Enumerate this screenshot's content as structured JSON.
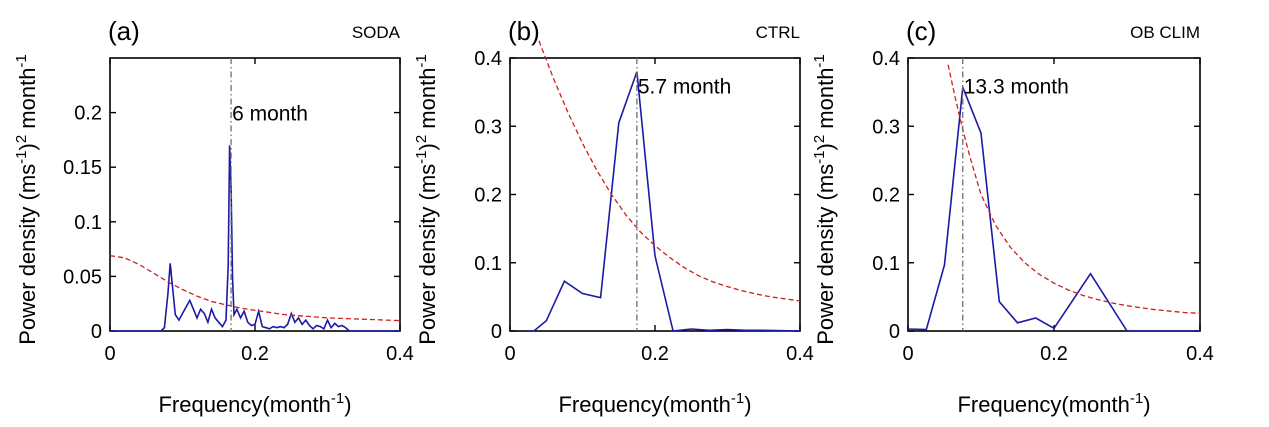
{
  "chart_data": [
    {
      "type": "line",
      "panel_label": "(a)",
      "dataset": "SODA",
      "xlabel": "Frequency(month",
      "xlabel_sup": "-1",
      "xlabel_end": ")",
      "ylabel_parts": [
        "Power density (ms",
        "-1",
        ")",
        "2",
        " month",
        "-1"
      ],
      "xlim": [
        0,
        0.4
      ],
      "ylim": [
        0,
        0.25
      ],
      "xticks": [
        0,
        0.2,
        0.4
      ],
      "xtick_labels": [
        "0",
        "0.2",
        "0.4"
      ],
      "yticks": [
        0,
        0.05,
        0.1,
        0.15,
        0.2
      ],
      "ytick_labels": [
        "0",
        "0.05",
        "0.1",
        "0.15",
        "0.2"
      ],
      "peak_frequency": 0.167,
      "peak_label": "6 month",
      "series": [
        {
          "role": "spectrum",
          "color": "#1a1aa6",
          "x": [
            0,
            0.05,
            0.07,
            0.075,
            0.08,
            0.083,
            0.087,
            0.09,
            0.095,
            0.1,
            0.105,
            0.11,
            0.115,
            0.12,
            0.125,
            0.13,
            0.135,
            0.14,
            0.145,
            0.15,
            0.155,
            0.16,
            0.163,
            0.165,
            0.167,
            0.169,
            0.171,
            0.175,
            0.18,
            0.185,
            0.19,
            0.195,
            0.2,
            0.205,
            0.21,
            0.215,
            0.22,
            0.225,
            0.23,
            0.235,
            0.24,
            0.245,
            0.25,
            0.255,
            0.26,
            0.265,
            0.27,
            0.275,
            0.28,
            0.285,
            0.29,
            0.295,
            0.3,
            0.305,
            0.31,
            0.315,
            0.32,
            0.325,
            0.33,
            0.4
          ],
          "y": [
            0,
            0,
            0,
            0.003,
            0.035,
            0.062,
            0.035,
            0.015,
            0.01,
            0.016,
            0.022,
            0.028,
            0.02,
            0.012,
            0.02,
            0.016,
            0.008,
            0.02,
            0.012,
            0.008,
            0.004,
            0.01,
            0.06,
            0.17,
            0.13,
            0.05,
            0.015,
            0.02,
            0.012,
            0.018,
            0.008,
            0.005,
            0.006,
            0.018,
            0.004,
            0.003,
            0.002,
            0.004,
            0.003,
            0.004,
            0.003,
            0.006,
            0.016,
            0.008,
            0.012,
            0.006,
            0.01,
            0.005,
            0.002,
            0.005,
            0.004,
            0.002,
            0.01,
            0.003,
            0.007,
            0.004,
            0.005,
            0.003,
            0,
            0
          ]
        },
        {
          "role": "reference",
          "color": "#cc1f1f",
          "x": [
            0,
            0.02,
            0.04,
            0.06,
            0.08,
            0.1,
            0.12,
            0.14,
            0.16,
            0.18,
            0.2,
            0.22,
            0.24,
            0.26,
            0.28,
            0.3,
            0.32,
            0.34,
            0.36,
            0.38,
            0.4
          ],
          "y": [
            0.069,
            0.067,
            0.061,
            0.053,
            0.045,
            0.038,
            0.032,
            0.027,
            0.024,
            0.021,
            0.019,
            0.017,
            0.015,
            0.014,
            0.013,
            0.012,
            0.0115,
            0.011,
            0.0105,
            0.01,
            0.0095
          ]
        }
      ]
    },
    {
      "type": "line",
      "panel_label": "(b)",
      "dataset": "CTRL",
      "xlabel": "Frequency(month",
      "xlabel_sup": "-1",
      "xlabel_end": ")",
      "ylabel_parts": [
        "Power density (ms",
        "-1",
        ")",
        "2",
        " month",
        "-1"
      ],
      "xlim": [
        0,
        0.4
      ],
      "ylim": [
        0,
        0.4
      ],
      "xticks": [
        0,
        0.2,
        0.4
      ],
      "xtick_labels": [
        "0",
        "0.2",
        "0.4"
      ],
      "yticks": [
        0,
        0.1,
        0.2,
        0.3,
        0.4
      ],
      "ytick_labels": [
        "0",
        "0.1",
        "0.2",
        "0.3",
        "0.4"
      ],
      "peak_frequency": 0.175,
      "peak_label": "5.7 month",
      "series": [
        {
          "role": "spectrum",
          "color": "#1a1aa6",
          "x": [
            0.025,
            0.033,
            0.05,
            0.075,
            0.1,
            0.125,
            0.15,
            0.175,
            0.2,
            0.225,
            0.25,
            0.275,
            0.3,
            0.325,
            0.35,
            0.4
          ],
          "y": [
            0,
            0,
            0.015,
            0.073,
            0.055,
            0.049,
            0.305,
            0.38,
            0.11,
            0,
            0.003,
            0.001,
            0.002,
            0.001,
            0.001,
            0
          ]
        },
        {
          "role": "reference",
          "color": "#cc1f1f",
          "x": [
            0.04,
            0.06,
            0.08,
            0.1,
            0.12,
            0.14,
            0.16,
            0.18,
            0.2,
            0.22,
            0.24,
            0.26,
            0.28,
            0.3,
            0.32,
            0.34,
            0.36,
            0.38,
            0.4
          ],
          "y": [
            0.425,
            0.37,
            0.32,
            0.275,
            0.235,
            0.2,
            0.17,
            0.145,
            0.125,
            0.108,
            0.093,
            0.081,
            0.072,
            0.065,
            0.059,
            0.054,
            0.05,
            0.047,
            0.044
          ]
        }
      ]
    },
    {
      "type": "line",
      "panel_label": "(c)",
      "dataset": "OB CLIM",
      "xlabel": "Frequency(month",
      "xlabel_sup": "-1",
      "xlabel_end": ")",
      "ylabel_parts": [
        "Power density (ms",
        "-1",
        ")",
        "2",
        " month",
        "-1"
      ],
      "xlim": [
        0,
        0.4
      ],
      "ylim": [
        0,
        0.4
      ],
      "xticks": [
        0,
        0.2,
        0.4
      ],
      "xtick_labels": [
        "0",
        "0.2",
        "0.4"
      ],
      "yticks": [
        0,
        0.1,
        0.2,
        0.3,
        0.4
      ],
      "ytick_labels": [
        "0",
        "0.1",
        "0.2",
        "0.3",
        "0.4"
      ],
      "peak_frequency": 0.075,
      "peak_label": "13.3 month",
      "series": [
        {
          "role": "spectrum",
          "color": "#1a1aa6",
          "x": [
            0,
            0.025,
            0.05,
            0.075,
            0.1,
            0.125,
            0.15,
            0.175,
            0.2,
            0.25,
            0.3,
            0.35,
            0.4
          ],
          "y": [
            0.003,
            0.002,
            0.097,
            0.357,
            0.29,
            0.043,
            0.012,
            0.019,
            0.004,
            0.084,
            0,
            0,
            0
          ]
        },
        {
          "role": "reference",
          "color": "#cc1f1f",
          "x": [
            0.055,
            0.065,
            0.075,
            0.085,
            0.1,
            0.12,
            0.14,
            0.16,
            0.18,
            0.2,
            0.22,
            0.24,
            0.26,
            0.28,
            0.3,
            0.32,
            0.34,
            0.36,
            0.38,
            0.4
          ],
          "y": [
            0.39,
            0.34,
            0.295,
            0.255,
            0.2,
            0.155,
            0.123,
            0.1,
            0.083,
            0.07,
            0.06,
            0.052,
            0.046,
            0.041,
            0.037,
            0.034,
            0.031,
            0.029,
            0.027,
            0.026
          ]
        }
      ]
    }
  ]
}
